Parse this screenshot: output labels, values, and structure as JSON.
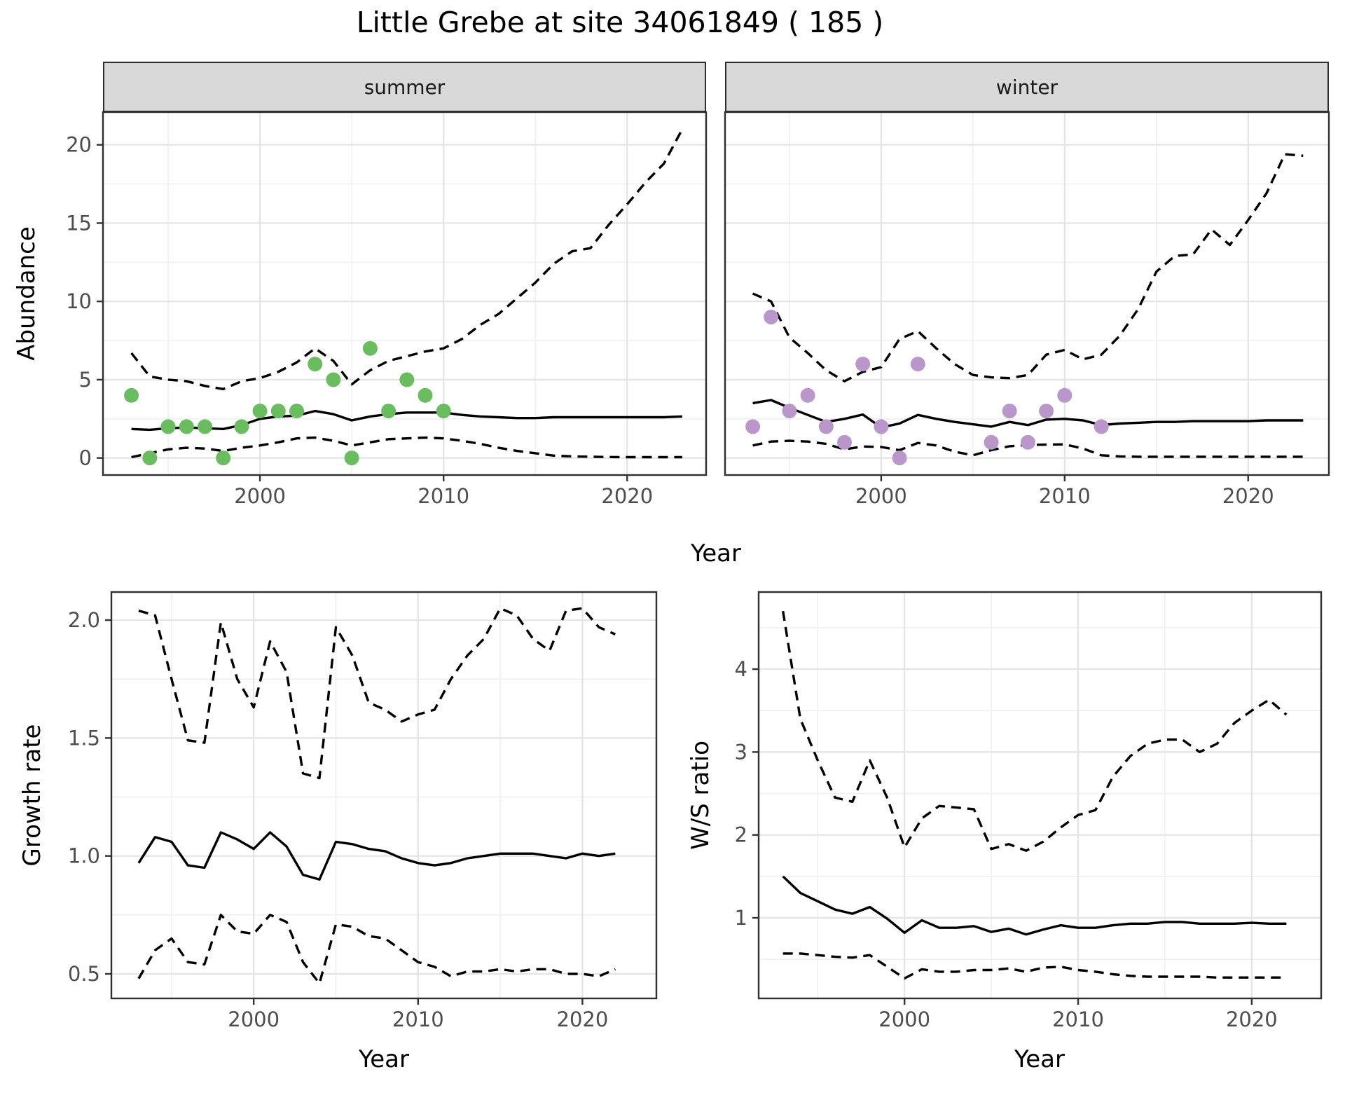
{
  "title": "Little Grebe at site 34061849 ( 185 )",
  "colors": {
    "summer_points": "#69bd5f",
    "winter_points": "#ba97ca",
    "line": "#000000",
    "strip_bg": "#d9d9d9",
    "panel_border": "#2f2f2f",
    "grid_major": "#e4e4e4",
    "grid_minor": "#f0f0f0",
    "tick_label": "#4d4d4d"
  },
  "chart_data": [
    {
      "id": "abundance-summer",
      "type": "line",
      "facet_label": "summer",
      "xlabel": "Year",
      "ylabel": "Abundance",
      "xlim": [
        1991.45,
        2024.3
      ],
      "ylim": [
        -1.09,
        22.09
      ],
      "xticks": [
        2000,
        2010,
        2020
      ],
      "xtick_labels": [
        "2000",
        "2010",
        "2020"
      ],
      "yticks": [
        0,
        5,
        10,
        15,
        20
      ],
      "ytick_labels": [
        "0",
        "5",
        "10",
        "15",
        "20"
      ],
      "show_y_tick_labels": true,
      "points": {
        "x": [
          1993,
          1994,
          1995,
          1996,
          1997,
          1998,
          1999,
          2000,
          2001,
          2002,
          2003,
          2004,
          2005,
          2006,
          2007,
          2008,
          2009,
          2010
        ],
        "y": [
          4,
          0,
          2,
          2,
          2,
          0,
          2,
          3,
          3,
          3,
          6,
          5,
          0,
          7,
          3,
          5,
          4,
          3
        ],
        "color": "#69bd5f"
      },
      "x": [
        1993,
        1994,
        1995,
        1996,
        1997,
        1998,
        1999,
        2000,
        2001,
        2002,
        2003,
        2004,
        2005,
        2006,
        2007,
        2008,
        2009,
        2010,
        2011,
        2012,
        2013,
        2014,
        2015,
        2016,
        2017,
        2018,
        2019,
        2020,
        2021,
        2022,
        2023
      ],
      "series": [
        {
          "name": "mean",
          "style": "solid",
          "values": [
            1.85,
            1.8,
            1.9,
            1.95,
            1.9,
            1.85,
            2.1,
            2.5,
            2.65,
            2.7,
            3.0,
            2.8,
            2.4,
            2.65,
            2.8,
            2.9,
            2.9,
            2.9,
            2.75,
            2.65,
            2.6,
            2.55,
            2.55,
            2.6,
            2.6,
            2.6,
            2.6,
            2.6,
            2.6,
            2.6,
            2.65
          ]
        },
        {
          "name": "upper",
          "style": "dashed",
          "values": [
            6.7,
            5.2,
            5.0,
            4.9,
            4.6,
            4.4,
            4.9,
            5.1,
            5.5,
            6.1,
            7.0,
            6.2,
            4.7,
            5.6,
            6.2,
            6.5,
            6.8,
            7.0,
            7.6,
            8.5,
            9.2,
            10.2,
            11.2,
            12.4,
            13.2,
            13.4,
            14.9,
            16.2,
            17.6,
            18.8,
            21.0
          ]
        },
        {
          "name": "lower",
          "style": "dashed",
          "values": [
            0.05,
            0.3,
            0.55,
            0.65,
            0.6,
            0.45,
            0.65,
            0.8,
            1.0,
            1.25,
            1.3,
            1.1,
            0.8,
            1.0,
            1.2,
            1.25,
            1.3,
            1.25,
            1.1,
            0.9,
            0.65,
            0.45,
            0.3,
            0.15,
            0.1,
            0.08,
            0.06,
            0.05,
            0.05,
            0.05,
            0.05
          ]
        }
      ]
    },
    {
      "id": "abundance-winter",
      "type": "line",
      "facet_label": "winter",
      "xlabel": "Year",
      "ylabel": "Abundance",
      "xlim": [
        1991.49,
        2024.4
      ],
      "ylim": [
        -1.09,
        22.09
      ],
      "xticks": [
        2000,
        2010,
        2020
      ],
      "xtick_labels": [
        "2000",
        "2010",
        "2020"
      ],
      "yticks": [
        0,
        5,
        10,
        15,
        20
      ],
      "ytick_labels": [
        "0",
        "5",
        "10",
        "15",
        "20"
      ],
      "show_y_tick_labels": false,
      "points": {
        "x": [
          1993,
          1994,
          1995,
          1996,
          1997,
          1998,
          1999,
          2000,
          2001,
          2002,
          2006,
          2007,
          2008,
          2009,
          2010,
          2012
        ],
        "y": [
          2,
          9,
          3,
          4,
          2,
          1,
          6,
          2,
          0,
          6,
          1,
          3,
          1,
          3,
          4,
          2
        ],
        "color": "#ba97ca"
      },
      "x": [
        1993,
        1994,
        1995,
        1996,
        1997,
        1998,
        1999,
        2000,
        2001,
        2002,
        2003,
        2004,
        2005,
        2006,
        2007,
        2008,
        2009,
        2010,
        2011,
        2012,
        2013,
        2014,
        2015,
        2016,
        2017,
        2018,
        2019,
        2020,
        2021,
        2022,
        2023
      ],
      "series": [
        {
          "name": "mean",
          "style": "solid",
          "values": [
            3.5,
            3.7,
            3.2,
            2.75,
            2.3,
            2.5,
            2.77,
            1.95,
            2.2,
            2.75,
            2.5,
            2.3,
            2.15,
            2.0,
            2.3,
            2.1,
            2.45,
            2.5,
            2.4,
            2.1,
            2.2,
            2.25,
            2.3,
            2.3,
            2.35,
            2.35,
            2.35,
            2.35,
            2.4,
            2.4,
            2.4
          ]
        },
        {
          "name": "upper",
          "style": "dashed",
          "values": [
            10.5,
            10.0,
            7.7,
            6.7,
            5.6,
            4.9,
            5.5,
            5.8,
            7.6,
            8.1,
            7.0,
            6.0,
            5.3,
            5.15,
            5.1,
            5.3,
            6.6,
            6.9,
            6.3,
            6.6,
            7.8,
            9.5,
            11.9,
            12.9,
            13.0,
            14.6,
            13.6,
            15.2,
            16.9,
            19.4,
            19.3
          ]
        },
        {
          "name": "lower",
          "style": "dashed",
          "values": [
            0.8,
            1.05,
            1.1,
            1.05,
            0.9,
            0.55,
            0.73,
            0.7,
            0.5,
            0.96,
            0.8,
            0.4,
            0.17,
            0.5,
            0.75,
            0.83,
            0.85,
            0.87,
            0.6,
            0.17,
            0.1,
            0.08,
            0.08,
            0.08,
            0.08,
            0.08,
            0.08,
            0.08,
            0.08,
            0.08,
            0.08
          ]
        }
      ]
    },
    {
      "id": "growth-rate",
      "type": "line",
      "facet_label": "",
      "xlabel": "Year",
      "ylabel": "Growth rate",
      "xlim": [
        1991.34,
        2024.5
      ],
      "ylim": [
        0.396,
        2.119
      ],
      "xticks": [
        2000,
        2010,
        2020
      ],
      "xtick_labels": [
        "2000",
        "2010",
        "2020"
      ],
      "yticks": [
        0.5,
        1.0,
        1.5,
        2.0
      ],
      "ytick_labels": [
        "0.5",
        "1.0",
        "1.5",
        "2.0"
      ],
      "show_y_tick_labels": true,
      "points": null,
      "x": [
        1993,
        1994,
        1995,
        1996,
        1997,
        1998,
        1999,
        2000,
        2001,
        2002,
        2003,
        2004,
        2005,
        2006,
        2007,
        2008,
        2009,
        2010,
        2011,
        2012,
        2013,
        2014,
        2015,
        2016,
        2017,
        2018,
        2019,
        2020,
        2021,
        2022
      ],
      "series": [
        {
          "name": "mean",
          "style": "solid",
          "values": [
            0.97,
            1.08,
            1.06,
            0.96,
            0.95,
            1.1,
            1.07,
            1.03,
            1.1,
            1.04,
            0.92,
            0.9,
            1.06,
            1.05,
            1.03,
            1.02,
            0.99,
            0.97,
            0.96,
            0.97,
            0.99,
            1.0,
            1.01,
            1.01,
            1.01,
            1.0,
            0.99,
            1.01,
            1.0,
            1.01
          ]
        },
        {
          "name": "upper",
          "style": "dashed",
          "values": [
            2.04,
            2.02,
            1.75,
            1.49,
            1.48,
            1.99,
            1.75,
            1.63,
            1.91,
            1.78,
            1.35,
            1.33,
            1.97,
            1.85,
            1.65,
            1.62,
            1.57,
            1.6,
            1.62,
            1.75,
            1.85,
            1.92,
            2.05,
            2.02,
            1.92,
            1.87,
            2.04,
            2.05,
            1.97,
            1.94
          ]
        },
        {
          "name": "lower",
          "style": "dashed",
          "values": [
            0.48,
            0.6,
            0.65,
            0.55,
            0.54,
            0.75,
            0.68,
            0.67,
            0.75,
            0.72,
            0.55,
            0.46,
            0.71,
            0.7,
            0.66,
            0.65,
            0.6,
            0.55,
            0.53,
            0.49,
            0.51,
            0.51,
            0.52,
            0.51,
            0.52,
            0.52,
            0.5,
            0.5,
            0.49,
            0.52
          ]
        }
      ]
    },
    {
      "id": "ws-ratio",
      "type": "line",
      "facet_label": "",
      "xlabel": "Year",
      "ylabel": "W/S ratio",
      "xlim": [
        1991.6,
        2024.0
      ],
      "ylim": [
        0.028,
        4.93
      ],
      "xticks": [
        2000,
        2010,
        2020
      ],
      "xtick_labels": [
        "2000",
        "2010",
        "2020"
      ],
      "yticks": [
        1,
        2,
        3,
        4
      ],
      "ytick_labels": [
        "1",
        "2",
        "3",
        "4"
      ],
      "show_y_tick_labels": true,
      "points": null,
      "x": [
        1993,
        1994,
        1995,
        1996,
        1997,
        1998,
        1999,
        2000,
        2001,
        2002,
        2003,
        2004,
        2005,
        2006,
        2007,
        2008,
        2009,
        2010,
        2011,
        2012,
        2013,
        2014,
        2015,
        2016,
        2017,
        2018,
        2019,
        2020,
        2021,
        2022
      ],
      "series": [
        {
          "name": "mean",
          "style": "solid",
          "values": [
            1.5,
            1.3,
            1.2,
            1.1,
            1.05,
            1.13,
            0.99,
            0.82,
            0.97,
            0.88,
            0.88,
            0.9,
            0.83,
            0.87,
            0.8,
            0.86,
            0.91,
            0.88,
            0.88,
            0.91,
            0.93,
            0.93,
            0.95,
            0.95,
            0.93,
            0.93,
            0.93,
            0.94,
            0.93,
            0.93
          ]
        },
        {
          "name": "upper",
          "style": "dashed",
          "values": [
            4.7,
            3.4,
            2.9,
            2.45,
            2.4,
            2.9,
            2.45,
            1.85,
            2.2,
            2.35,
            2.33,
            2.31,
            1.83,
            1.89,
            1.81,
            1.92,
            2.09,
            2.24,
            2.3,
            2.7,
            2.95,
            3.1,
            3.15,
            3.15,
            3.0,
            3.1,
            3.35,
            3.5,
            3.63,
            3.45
          ]
        },
        {
          "name": "lower",
          "style": "dashed",
          "values": [
            0.57,
            0.57,
            0.55,
            0.53,
            0.52,
            0.55,
            0.41,
            0.27,
            0.38,
            0.35,
            0.35,
            0.37,
            0.37,
            0.39,
            0.35,
            0.4,
            0.41,
            0.37,
            0.35,
            0.32,
            0.3,
            0.29,
            0.29,
            0.29,
            0.29,
            0.28,
            0.28,
            0.28,
            0.28,
            0.28
          ]
        }
      ]
    }
  ]
}
